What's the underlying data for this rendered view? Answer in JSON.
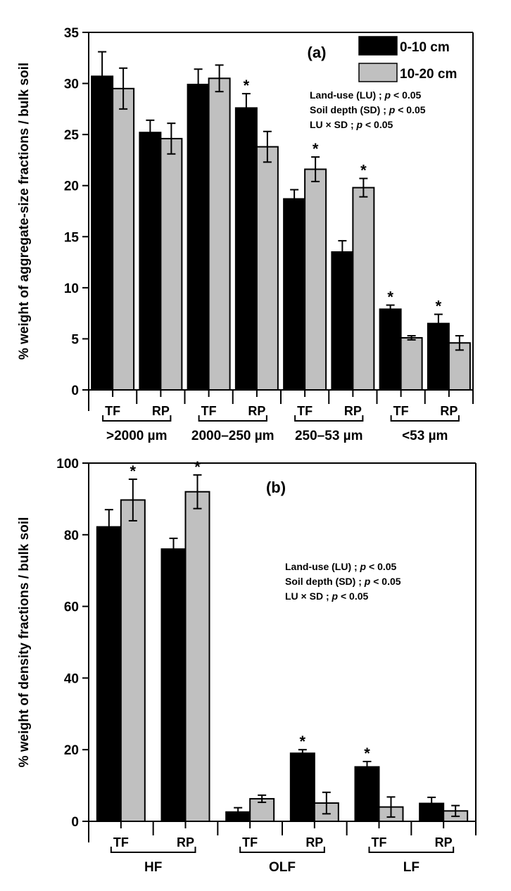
{
  "chart_data": [
    {
      "type": "bar",
      "panel_label": "(a)",
      "ylabel": "% weight of aggregate-size fractions / bulk soil",
      "ylim": [
        0,
        35
      ],
      "yticks": [
        0,
        5,
        10,
        15,
        20,
        25,
        30,
        35
      ],
      "groups": [
        ">2000 µm",
        "2000–250 µm",
        "250–53 µm",
        "<53 µm"
      ],
      "categories": [
        "TF",
        "RP",
        "TF",
        "RP",
        "TF",
        "RP",
        "TF",
        "RP"
      ],
      "series": [
        {
          "name": "0-10 cm",
          "color": "#000000",
          "values": [
            30.7,
            25.2,
            29.9,
            27.6,
            18.7,
            13.5,
            7.9,
            6.5
          ],
          "errors": [
            2.4,
            1.2,
            1.5,
            1.4,
            0.9,
            1.1,
            0.4,
            0.9
          ],
          "sig": [
            false,
            false,
            false,
            true,
            false,
            false,
            true,
            true
          ]
        },
        {
          "name": "10-20 cm",
          "color": "#c0c0c0",
          "values": [
            29.5,
            24.6,
            30.5,
            23.8,
            21.6,
            19.8,
            5.1,
            4.6
          ],
          "errors": [
            2.0,
            1.5,
            1.3,
            1.5,
            1.2,
            0.9,
            0.2,
            0.7
          ],
          "sig": [
            false,
            false,
            false,
            false,
            true,
            true,
            false,
            false
          ]
        }
      ],
      "legend": [
        "0-10 cm",
        "10-20 cm"
      ],
      "legend_position": "top-right",
      "annotations": [
        "Land-use (LU) ; p < 0.05",
        "Soil depth (SD) ; p < 0.05",
        "LU × SD ; p < 0.05"
      ]
    },
    {
      "type": "bar",
      "panel_label": "(b)",
      "ylabel": "% weight of density fractions / bulk soil",
      "ylim": [
        0,
        100
      ],
      "yticks": [
        0,
        20,
        40,
        60,
        80,
        100
      ],
      "groups": [
        "HF",
        "OLF",
        "LF"
      ],
      "categories": [
        "TF",
        "RP",
        "TF",
        "RP",
        "TF",
        "RP"
      ],
      "series": [
        {
          "name": "0-10 cm",
          "color": "#000000",
          "values": [
            82.2,
            76.0,
            2.6,
            19.0,
            15.2,
            5.0
          ],
          "errors": [
            4.8,
            3.0,
            1.2,
            1.0,
            1.5,
            1.7
          ],
          "sig": [
            false,
            false,
            false,
            true,
            true,
            false
          ]
        },
        {
          "name": "10-20 cm",
          "color": "#c0c0c0",
          "values": [
            89.7,
            92.0,
            6.3,
            5.1,
            4.0,
            2.9
          ],
          "errors": [
            5.8,
            4.7,
            1.0,
            3.0,
            2.8,
            1.5
          ],
          "sig": [
            true,
            true,
            false,
            false,
            false,
            false
          ]
        }
      ],
      "annotations": [
        "Land-use (LU) ; p < 0.05",
        "Soil depth (SD) ; p < 0.05",
        "LU × SD ; p < 0.05"
      ]
    }
  ]
}
